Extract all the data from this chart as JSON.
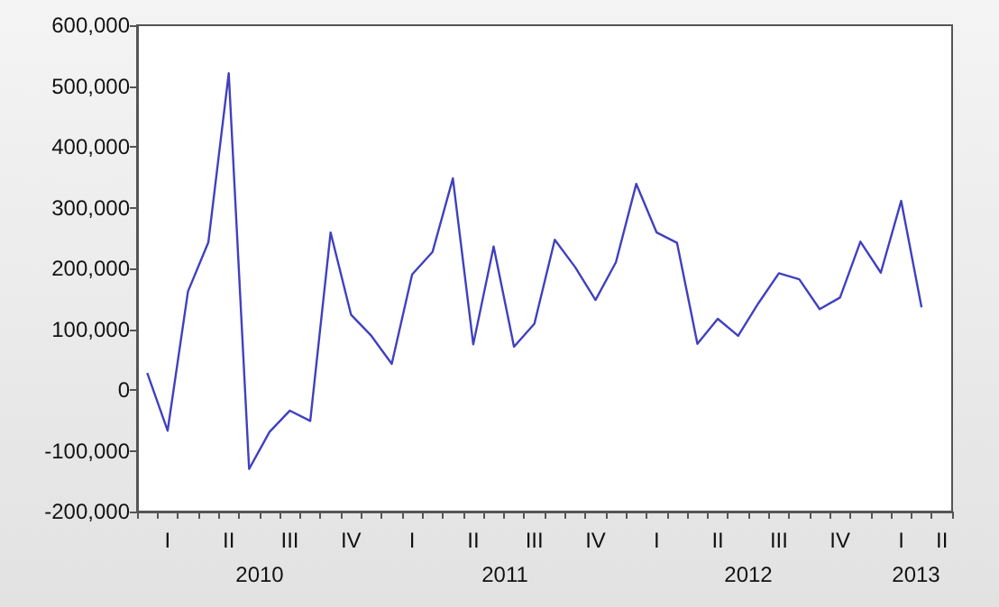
{
  "chart_data": {
    "type": "line",
    "categories": [
      null,
      "I",
      null,
      null,
      "II",
      null,
      null,
      "III",
      null,
      null,
      "IV",
      null,
      null,
      "I",
      null,
      null,
      "II",
      null,
      null,
      "III",
      null,
      null,
      "IV",
      null,
      null,
      "I",
      null,
      null,
      "II",
      null,
      null,
      "III",
      null,
      null,
      "IV",
      null,
      null,
      "I",
      null,
      "II"
    ],
    "series": [
      {
        "color": "#4040c0",
        "values": [
          28000,
          -67000,
          162000,
          243000,
          521000,
          -130000,
          -69000,
          -34000,
          -51000,
          259000,
          124000,
          89000,
          43000,
          190000,
          227000,
          348000,
          75000,
          236000,
          71000,
          109000,
          247000,
          202000,
          148000,
          210000,
          339000,
          259000,
          242000,
          76000,
          117000,
          89000,
          143000,
          192000,
          182000,
          133000,
          152000,
          244000,
          193000,
          311000,
          136000,
          null
        ]
      }
    ],
    "ylim": [
      -200000,
      600000
    ],
    "yticks": [
      {
        "value": -200000,
        "label": "-200,000"
      },
      {
        "value": -100000,
        "label": "-100,000"
      },
      {
        "value": 0,
        "label": "0"
      },
      {
        "value": 100000,
        "label": "100,000"
      },
      {
        "value": 200000,
        "label": "200,000"
      },
      {
        "value": 300000,
        "label": "300,000"
      },
      {
        "value": 400000,
        "label": "400,000"
      },
      {
        "value": 500000,
        "label": "500,000"
      },
      {
        "value": 600000,
        "label": "600,000"
      }
    ],
    "annotations": [
      "2010",
      "2011",
      "2012",
      "2013"
    ],
    "grid": false,
    "marker": "none",
    "line_style": "solid"
  }
}
